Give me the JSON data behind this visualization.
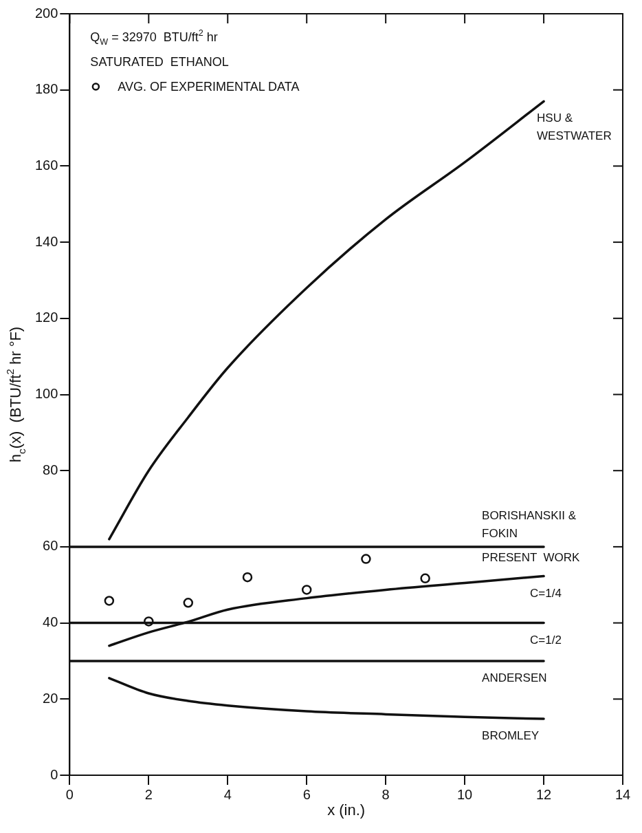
{
  "chart_data": {
    "type": "line",
    "xlabel": "x (in.)",
    "ylabel": "h$_{c}$(x)  (BTU/ft$^{2}$ hr °F)",
    "xlim": [
      0,
      14
    ],
    "xticks": [
      0,
      2,
      4,
      6,
      8,
      10,
      12,
      14
    ],
    "ylim": [
      0,
      200
    ],
    "yticks": [
      0,
      20,
      40,
      60,
      80,
      100,
      120,
      140,
      160,
      180,
      200
    ],
    "grid": false,
    "legend": "top left",
    "marker": "none",
    "line_style": "solid",
    "annotations": [
      "Q$_{W}$ = 32970  BTU/ft$^{2}$ hr",
      "SATURATED  ETHANOL",
      "PRESENT  WORK"
    ],
    "series": [
      {
        "name": "HSU & WESTWATER",
        "color": "#111111",
        "x": [
          1,
          2,
          3,
          4,
          6,
          8,
          10,
          12
        ],
        "values": [
          62,
          80,
          94,
          107,
          128,
          146,
          161,
          177
        ]
      },
      {
        "name": "BORISHANSKII & FOKIN",
        "color": "#111111",
        "x": [
          0,
          12
        ],
        "values": [
          60,
          60
        ]
      },
      {
        "name": "C=1/4",
        "color": "#111111",
        "x": [
          1,
          2,
          3,
          4,
          6,
          8,
          10,
          12
        ],
        "values": [
          34,
          37.5,
          40.3,
          43.5,
          46.5,
          48.7,
          50.5,
          52.3
        ]
      },
      {
        "name": "C=1/2",
        "color": "#111111",
        "x": [
          0,
          12
        ],
        "values": [
          40,
          40
        ]
      },
      {
        "name": "ANDERSEN",
        "color": "#111111",
        "x": [
          0,
          12
        ],
        "values": [
          30,
          30
        ]
      },
      {
        "name": "BROMLEY",
        "color": "#111111",
        "x": [
          1,
          2,
          3,
          4,
          6,
          8,
          10,
          12
        ],
        "values": [
          25.5,
          21.5,
          19.5,
          18.3,
          16.8,
          16,
          15.3,
          14.8
        ]
      },
      {
        "name": "AVG. OF EXPERIMENTAL DATA",
        "type": "scatter",
        "marker": "circle",
        "color": "#111111",
        "x": [
          1,
          2,
          3,
          4.5,
          6,
          7.5,
          9
        ],
        "values": [
          45.8,
          40.4,
          45.3,
          52,
          48.7,
          56.8,
          51.7
        ]
      }
    ]
  }
}
